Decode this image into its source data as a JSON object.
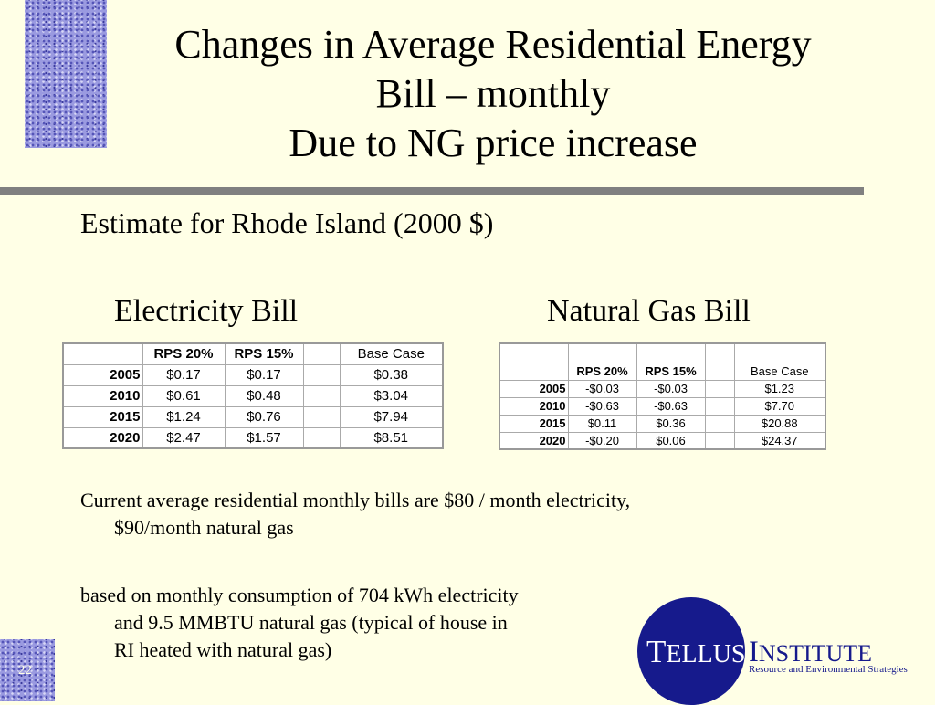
{
  "slide": {
    "page_number": "22",
    "title_lines": [
      "Changes in Average Residential Energy",
      "Bill – monthly",
      "Due to NG price increase"
    ],
    "subtitle": "Estimate for Rhode Island (2000 $)"
  },
  "electricity": {
    "heading": "Electricity Bill",
    "columns": [
      "",
      "RPS 20%",
      "RPS 15%",
      "",
      "Base Case"
    ],
    "rows": [
      {
        "year": "2005",
        "rps20": "$0.17",
        "rps15": "$0.17",
        "base": "$0.38"
      },
      {
        "year": "2010",
        "rps20": "$0.61",
        "rps15": "$0.48",
        "base": "$3.04"
      },
      {
        "year": "2015",
        "rps20": "$1.24",
        "rps15": "$0.76",
        "base": "$7.94"
      },
      {
        "year": "2020",
        "rps20": "$2.47",
        "rps15": "$1.57",
        "base": "$8.51"
      }
    ]
  },
  "natural_gas": {
    "heading": "Natural Gas Bill",
    "columns": [
      "",
      "RPS 20%",
      "RPS 15%",
      "",
      "Base Case"
    ],
    "rows": [
      {
        "year": "2005",
        "rps20": "-$0.03",
        "rps15": "-$0.03",
        "base": "$1.23"
      },
      {
        "year": "2010",
        "rps20": "-$0.63",
        "rps15": "-$0.63",
        "base": "$7.70"
      },
      {
        "year": "2015",
        "rps20": "$0.11",
        "rps15": "$0.36",
        "base": "$20.88"
      },
      {
        "year": "2020",
        "rps20": "-$0.20",
        "rps15": "$0.06",
        "base": "$24.37"
      }
    ]
  },
  "notes": {
    "current_line1": "Current average residential monthly bills are $80 / month electricity,",
    "current_line2": "$90/month natural gas",
    "basis_line1": "based on monthly consumption of 704 kWh electricity",
    "basis_line2": "and 9.5 MMBTU natural gas (typical of house in",
    "basis_line3": "RI heated with natural gas)"
  },
  "logo": {
    "tellus_initial": "T",
    "tellus_rest": "ELLUS",
    "institute_initial": "I",
    "institute_rest": "NSTITUTE",
    "tagline": "Resource and Environmental Strategies",
    "color": "#161a8c"
  }
}
